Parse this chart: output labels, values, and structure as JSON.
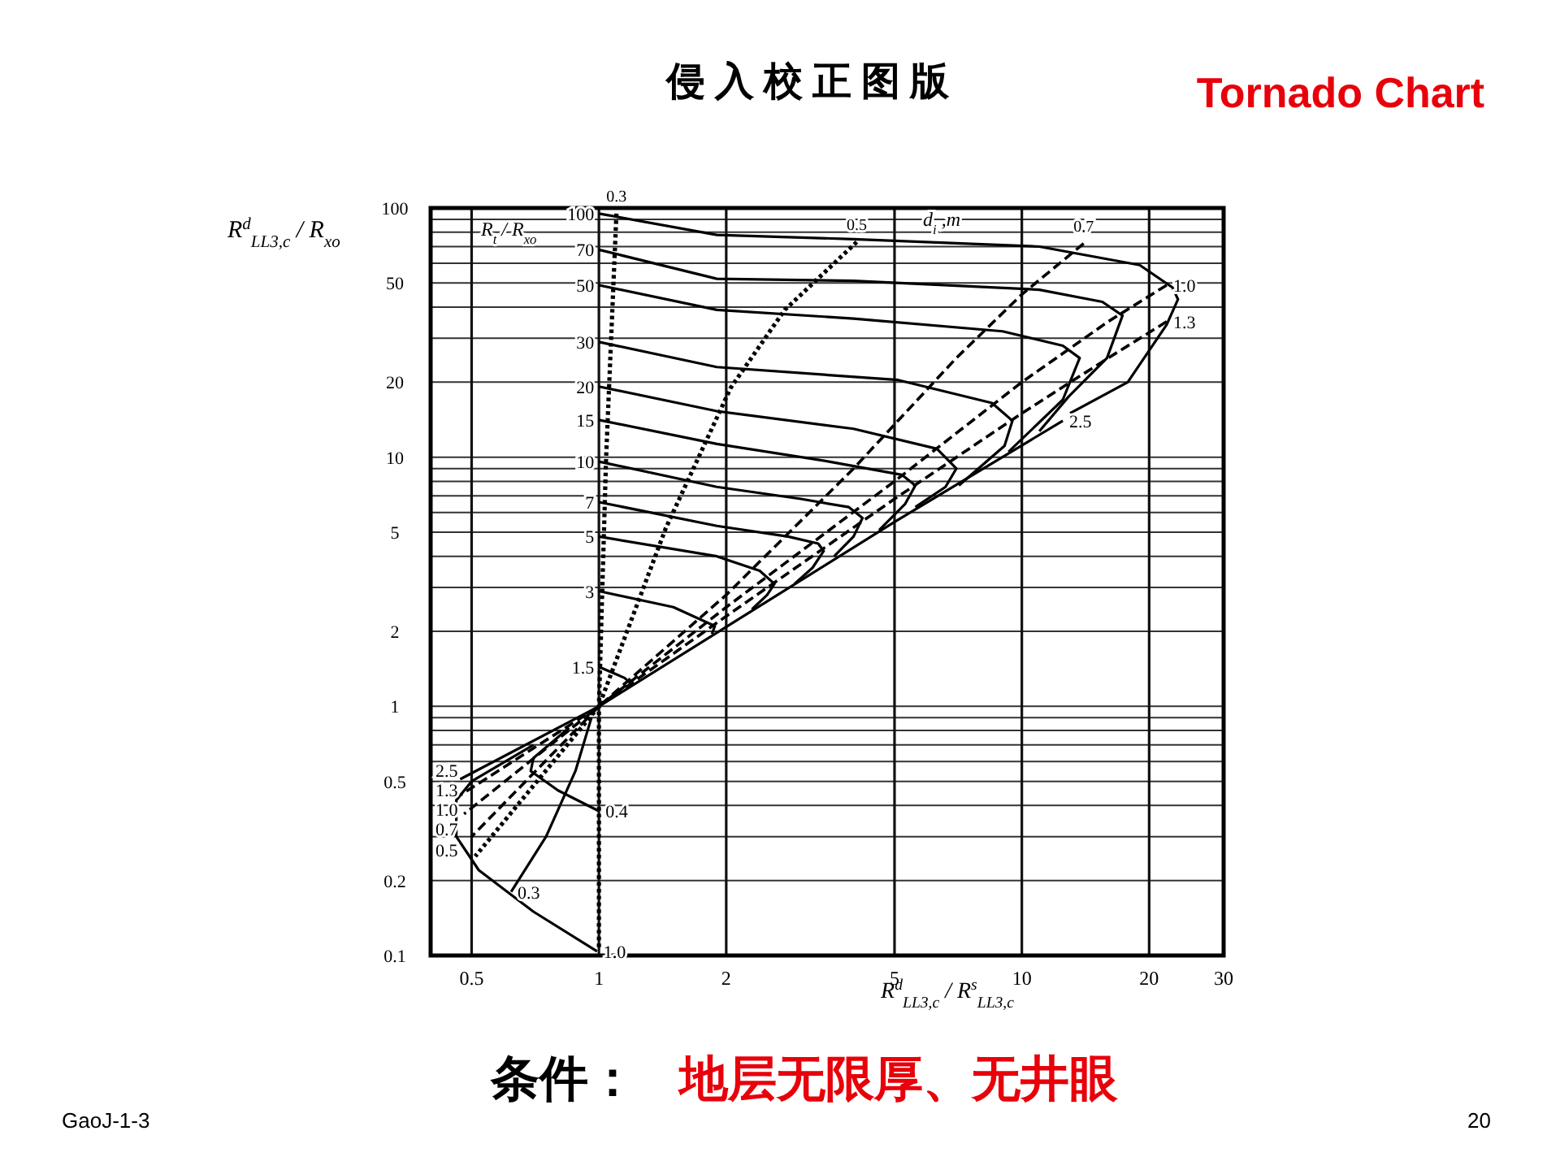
{
  "chart_data": {
    "type": "line",
    "title": "侵入校正图版",
    "subtitle": "Tornado Chart",
    "xlabel": "R$^{d}$$_{LL3,c}$ / R$^{s}$$_{LL3,c}$",
    "ylabel": "R$^{d}$$_{LL3,c}$ / R$_{xo}$",
    "log": "xy",
    "xlim": [
      0.4,
      30
    ],
    "ylim": [
      0.1,
      100
    ],
    "xticks": [
      0.5,
      1,
      2,
      5,
      10,
      20,
      30
    ],
    "yticks": [
      0.1,
      0.2,
      {
        "value": 0.3,
        "label": null
      },
      {
        "value": 0.4,
        "label": null
      },
      0.5,
      {
        "value": 0.6,
        "label": null
      },
      {
        "value": 0.7,
        "label": null
      },
      {
        "value": 0.8,
        "label": null
      },
      {
        "value": 0.9,
        "label": null
      },
      1,
      2,
      {
        "value": 3,
        "label": null
      },
      {
        "value": 4,
        "label": null
      },
      5,
      {
        "value": 6,
        "label": null
      },
      {
        "value": 7,
        "label": null
      },
      {
        "value": 8,
        "label": null
      },
      {
        "value": 9,
        "label": null
      },
      10,
      20,
      {
        "value": 30,
        "label": null
      },
      {
        "value": 40,
        "label": null
      },
      50,
      {
        "value": 60,
        "label": null
      },
      {
        "value": 70,
        "label": null
      },
      {
        "value": 80,
        "label": null
      },
      {
        "value": 90,
        "label": null
      },
      100
    ],
    "grid": true,
    "series": [
      {
        "name": "100",
        "color": "#000000",
        "line_style": "solid",
        "x": [
          1,
          1.9,
          4,
          11,
          19,
          22.7,
          23.4,
          22,
          17.8,
          13
        ],
        "values": [
          95,
          78,
          75,
          70,
          59,
          48,
          43,
          34,
          20,
          15
        ]
      },
      {
        "name": "70",
        "color": "#000000",
        "line_style": "solid",
        "x": [
          1,
          1.9,
          4,
          11,
          15.5,
          17.3,
          15.9,
          12.9,
          11
        ],
        "values": [
          68,
          52,
          51,
          47,
          42,
          37,
          25,
          17.5,
          12.7
        ]
      },
      {
        "name": "50",
        "color": "#000000",
        "line_style": "solid",
        "x": [
          1,
          1.9,
          4,
          9,
          12.5,
          13.7,
          12.5,
          9.3
        ],
        "values": [
          49,
          39,
          36,
          32,
          28,
          25,
          17,
          10.5
        ]
      },
      {
        "name": "30",
        "color": "#000000",
        "line_style": "solid",
        "x": [
          1,
          1.9,
          5.1,
          8.5,
          9.5,
          9.1,
          7.1
        ],
        "values": [
          29,
          23,
          20.4,
          16.5,
          14,
          11.1,
          7.7
        ]
      },
      {
        "name": "20",
        "color": "#000000",
        "line_style": "solid",
        "x": [
          1,
          1.9,
          4,
          6.3,
          7,
          6.6,
          5.6
        ],
        "values": [
          19.2,
          15.3,
          13,
          10.8,
          9,
          7.6,
          6.3
        ]
      },
      {
        "name": "15",
        "color": "#000000",
        "line_style": "solid",
        "x": [
          1,
          1.9,
          3.5,
          5.2,
          5.6,
          5.3,
          4.6
        ],
        "values": [
          14.1,
          11.3,
          9.6,
          8.5,
          7.7,
          6.5,
          5.1
        ]
      },
      {
        "name": "10",
        "color": "#000000",
        "line_style": "solid",
        "x": [
          1,
          1.9,
          3,
          3.9,
          4.2,
          4,
          3.6
        ],
        "values": [
          9.6,
          7.6,
          6.8,
          6.3,
          5.7,
          4.8,
          4
        ]
      },
      {
        "name": "7",
        "color": "#000000",
        "line_style": "solid",
        "x": [
          1,
          1.9,
          2.8,
          3.3,
          3.4,
          3.2,
          2.9
        ],
        "values": [
          6.6,
          5.3,
          4.8,
          4.5,
          4.2,
          3.6,
          3.1
        ]
      },
      {
        "name": "5",
        "color": "#000000",
        "line_style": "solid",
        "x": [
          1,
          1.9,
          2.4,
          2.6,
          2.5,
          2.3
        ],
        "values": [
          4.8,
          4,
          3.5,
          3.1,
          2.8,
          2.45
        ]
      },
      {
        "name": "3",
        "color": "#000000",
        "line_style": "solid",
        "x": [
          1,
          1.5,
          1.88,
          1.85
        ],
        "values": [
          2.9,
          2.5,
          2.1,
          1.95
        ]
      },
      {
        "name": "1.5",
        "color": "#000000",
        "line_style": "solid",
        "x": [
          1,
          1.15,
          1.2
        ],
        "values": [
          1.44,
          1.3,
          1.22
        ]
      },
      {
        "name": "0.4",
        "color": "#000000",
        "line_style": "solid",
        "x": [
          1,
          0.8,
          0.69,
          0.7,
          0.85
        ],
        "values": [
          0.38,
          0.46,
          0.55,
          0.62,
          0.82
        ]
      },
      {
        "name": "1.0",
        "color": "#000000",
        "line_style": "solid",
        "x": [
          0.99,
          0.7,
          0.52,
          0.46,
          0.46,
          0.5,
          0.7
        ],
        "values": [
          0.104,
          0.15,
          0.22,
          0.3,
          0.42,
          0.5,
          0.7
        ]
      },
      {
        "name": "0.3",
        "color": "#000000",
        "line_style": "solid",
        "x": [
          0.62,
          0.75,
          0.88,
          0.96
        ],
        "values": [
          0.18,
          0.3,
          0.55,
          0.9
        ]
      },
      {
        "name": "0.3",
        "color": "#000000",
        "line_style": "dotted",
        "x": [
          1.1,
          1.04,
          1,
          1
        ],
        "values": [
          95,
          10,
          1,
          0.105
        ]
      },
      {
        "name": "0.5",
        "color": "#000000",
        "line_style": "dotted",
        "x": [
          4.07,
          2.75,
          2.05,
          1.44,
          1,
          0.51
        ],
        "values": [
          73,
          39,
          19,
          5.2,
          1,
          0.25
        ]
      },
      {
        "name": "0.7",
        "color": "#000000",
        "line_style": "dashed",
        "x": [
          14,
          10,
          7,
          4,
          2,
          1,
          0.5
        ],
        "values": [
          72,
          45,
          25,
          9,
          2.8,
          1,
          0.3
        ]
      },
      {
        "name": "1.0",
        "color": "#000000",
        "line_style": "dashed",
        "x": [
          22,
          16,
          10,
          5,
          2,
          1,
          0.48
        ],
        "values": [
          49,
          35,
          20,
          8,
          2.5,
          1,
          0.37
        ]
      },
      {
        "name": "1.3",
        "color": "#000000",
        "line_style": "dashed",
        "x": [
          22,
          16,
          10,
          5,
          2,
          1,
          0.47
        ],
        "values": [
          35,
          25,
          15,
          6.8,
          2.3,
          1,
          0.44
        ]
      },
      {
        "name": "2.5",
        "color": "#000000",
        "line_style": "solid",
        "x": [
          12.5,
          5,
          1,
          0.47
        ],
        "values": [
          14,
          5.5,
          1,
          0.51
        ]
      }
    ],
    "annotations": [
      "条件：",
      "地层无限厚、无井眼",
      "GaoJ-1-3",
      "20",
      "d$_{i}$ ,m",
      "R$_{t}$ / R$_{xo}$",
      "2.5",
      "1.3",
      "1.0",
      "0.7",
      "0.5"
    ]
  }
}
